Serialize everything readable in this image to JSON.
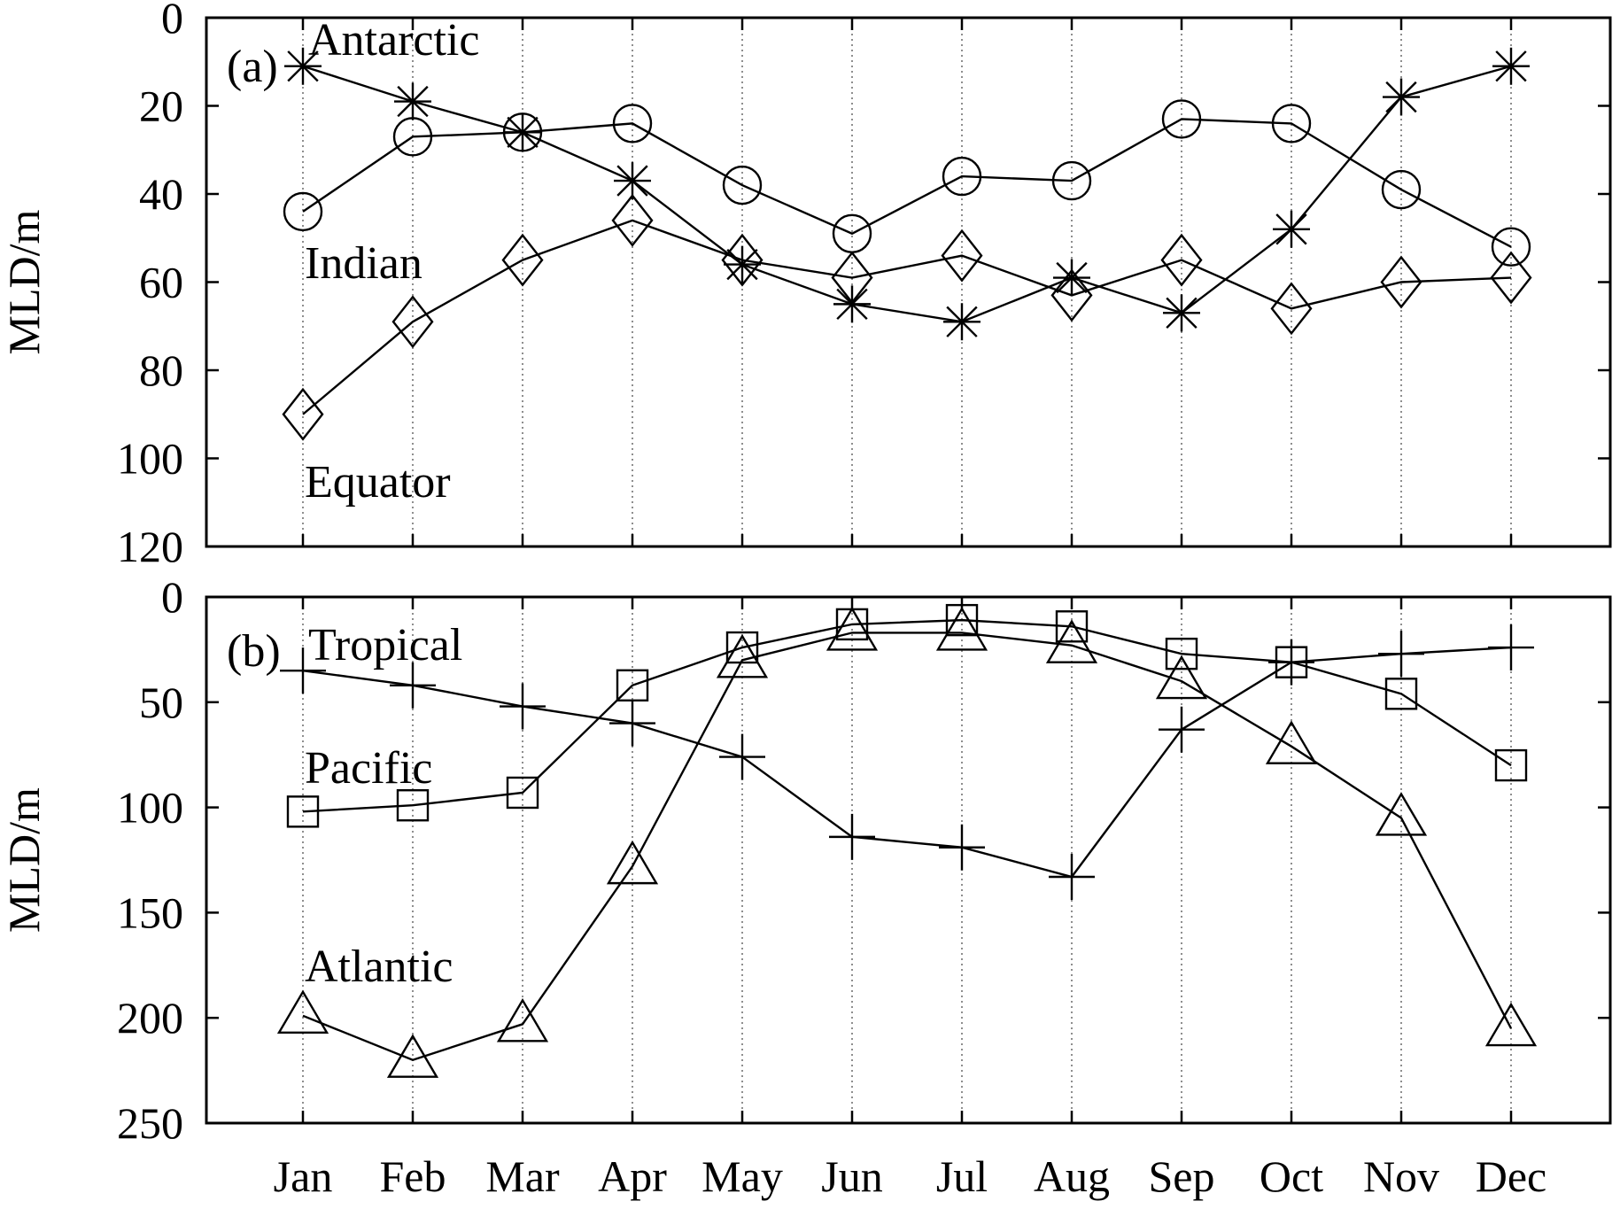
{
  "chart_data": [
    {
      "type": "line",
      "panel_label": "(a)",
      "ylabel": "MLD/m",
      "xlabel": "",
      "ylim": [
        0,
        120
      ],
      "y_inverted": true,
      "yticks": [
        "0",
        "20",
        "40",
        "60",
        "80",
        "100",
        "120"
      ],
      "categories": [
        "Jan",
        "Feb",
        "Mar",
        "Apr",
        "May",
        "Jun",
        "Jul",
        "Aug",
        "Sep",
        "Oct",
        "Nov",
        "Dec"
      ],
      "grid": "vertical-dotted",
      "series": [
        {
          "name": "Antarctic",
          "marker": "star",
          "values": [
            11,
            19,
            26,
            37,
            56,
            65,
            69,
            59,
            67,
            48,
            18,
            11
          ]
        },
        {
          "name": "Indian",
          "marker": "circle",
          "values": [
            44,
            27,
            26,
            24,
            38,
            49,
            36,
            37,
            23,
            24,
            39,
            52
          ]
        },
        {
          "name": "Equator",
          "marker": "diamond",
          "values": [
            90,
            69,
            55,
            46,
            55,
            59,
            54,
            63,
            55,
            66,
            60,
            59
          ]
        }
      ]
    },
    {
      "type": "line",
      "panel_label": "(b)",
      "ylabel": "MLD/m",
      "xlabel": "",
      "ylim": [
        0,
        250
      ],
      "y_inverted": true,
      "yticks": [
        "0",
        "50",
        "100",
        "150",
        "200",
        "250"
      ],
      "categories": [
        "Jan",
        "Feb",
        "Mar",
        "Apr",
        "May",
        "Jun",
        "Jul",
        "Aug",
        "Sep",
        "Oct",
        "Nov",
        "Dec"
      ],
      "grid": "vertical-dotted",
      "series": [
        {
          "name": "Tropical",
          "marker": "plus",
          "values": [
            35,
            42,
            52,
            60,
            76,
            114,
            119,
            133,
            63,
            31,
            27,
            24
          ]
        },
        {
          "name": "Pacific",
          "marker": "square",
          "values": [
            102,
            99,
            93,
            42,
            24,
            13,
            11,
            14,
            27,
            31,
            46,
            80
          ]
        },
        {
          "name": "Atlantic",
          "marker": "triangle",
          "values": [
            199,
            220,
            203,
            128,
            30,
            17,
            17,
            23,
            40,
            71,
            105,
            205
          ]
        }
      ]
    }
  ]
}
